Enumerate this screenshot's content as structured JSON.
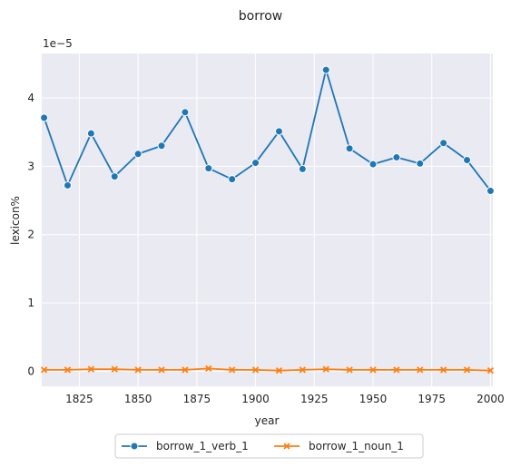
{
  "chart_data": {
    "type": "line",
    "title": "borrow",
    "xlabel": "year",
    "ylabel": "lexicon%",
    "offset_label": "1e−5",
    "x": [
      1810,
      1820,
      1830,
      1840,
      1850,
      1860,
      1870,
      1880,
      1890,
      1900,
      1910,
      1920,
      1930,
      1940,
      1950,
      1960,
      1970,
      1980,
      1990,
      2000
    ],
    "xlim": [
      1809,
      2001
    ],
    "ylim": [
      -0.22,
      4.65
    ],
    "xticks": [
      1825,
      1850,
      1875,
      1900,
      1925,
      1950,
      1975,
      2000
    ],
    "yticks": [
      0,
      1,
      2,
      3,
      4
    ],
    "grid": true,
    "legend_position": "bottom-center",
    "series": [
      {
        "name": "borrow_1_verb_1",
        "color": "#1f77b4",
        "marker": "circle",
        "values": [
          3.71,
          2.72,
          3.48,
          2.85,
          3.18,
          3.3,
          3.79,
          2.97,
          2.81,
          3.05,
          3.51,
          2.96,
          4.41,
          3.26,
          3.03,
          3.13,
          3.04,
          3.34,
          3.09,
          2.64
        ]
      },
      {
        "name": "borrow_1_noun_1",
        "color": "#ff7f0e",
        "marker": "x",
        "values": [
          0.02,
          0.02,
          0.03,
          0.03,
          0.02,
          0.02,
          0.02,
          0.04,
          0.02,
          0.02,
          0.01,
          0.02,
          0.03,
          0.02,
          0.02,
          0.02,
          0.02,
          0.02,
          0.02,
          0.01
        ]
      }
    ]
  }
}
